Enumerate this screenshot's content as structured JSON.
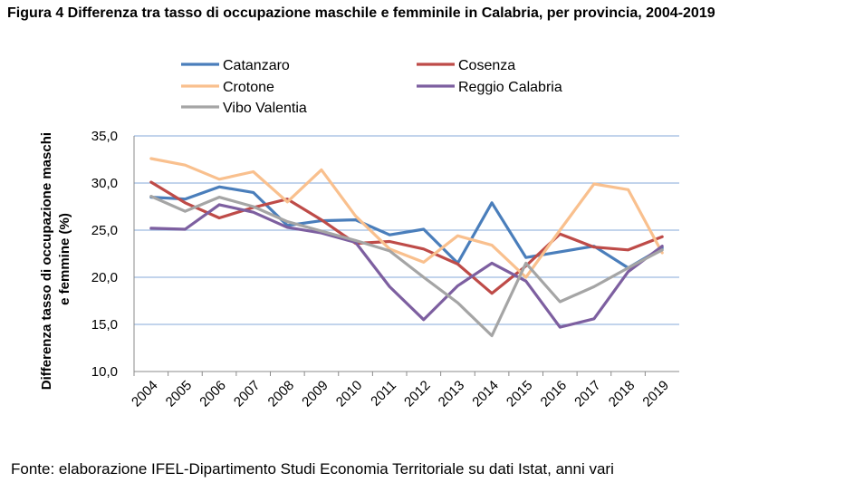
{
  "title": "Figura 4 Differenza tra tasso di occupazione maschile e femminile in Calabria, per provincia, 2004-2019",
  "source": "Fonte: elaborazione IFEL-Dipartimento Studi Economia Territoriale su dati Istat, anni vari",
  "chart_data": {
    "type": "line",
    "x": [
      "2004",
      "2005",
      "2006",
      "2007",
      "2008",
      "2009",
      "2010",
      "2011",
      "2012",
      "2013",
      "2014",
      "2015",
      "2016",
      "2017",
      "2018",
      "2019"
    ],
    "ylabel_line1": "Differenza tasso di occupazione maschi",
    "ylabel_line2": "e femmine (%)",
    "xlabel": "",
    "ylim": [
      10,
      35
    ],
    "yticks": [
      "10,0",
      "15,0",
      "20,0",
      "25,0",
      "30,0",
      "35,0"
    ],
    "grid": "horizontal",
    "legend_position": "top",
    "series": [
      {
        "name": "Catanzaro",
        "color": "#4a7ebb",
        "values": [
          28.5,
          28.3,
          29.6,
          29.0,
          25.5,
          26.0,
          26.1,
          24.5,
          25.1,
          21.5,
          27.9,
          22.1,
          22.7,
          23.3,
          21.0,
          23.1
        ]
      },
      {
        "name": "Cosenza",
        "color": "#be4b48",
        "values": [
          30.1,
          27.9,
          26.3,
          27.4,
          28.3,
          26.1,
          23.6,
          23.8,
          23.0,
          21.4,
          18.3,
          21.2,
          24.6,
          23.2,
          22.9,
          24.3
        ]
      },
      {
        "name": "Crotone",
        "color": "#f9c08e",
        "values": [
          32.6,
          31.9,
          30.4,
          31.2,
          28.0,
          31.4,
          26.5,
          23.0,
          21.6,
          24.4,
          23.4,
          20.0,
          25.0,
          29.9,
          29.3,
          22.6
        ]
      },
      {
        "name": "Reggio Calabria",
        "color": "#7d5fa0",
        "values": [
          25.2,
          25.1,
          27.7,
          26.9,
          25.3,
          24.7,
          23.7,
          19.0,
          15.5,
          19.1,
          21.5,
          19.6,
          14.7,
          15.6,
          20.6,
          23.3
        ]
      },
      {
        "name": "Vibo Valentia",
        "color": "#a5a5a5",
        "values": [
          28.6,
          27.0,
          28.5,
          27.5,
          25.9,
          24.9,
          23.9,
          22.8,
          20.0,
          17.3,
          13.8,
          21.5,
          17.4,
          19.0,
          21.0,
          22.9
        ]
      }
    ]
  }
}
